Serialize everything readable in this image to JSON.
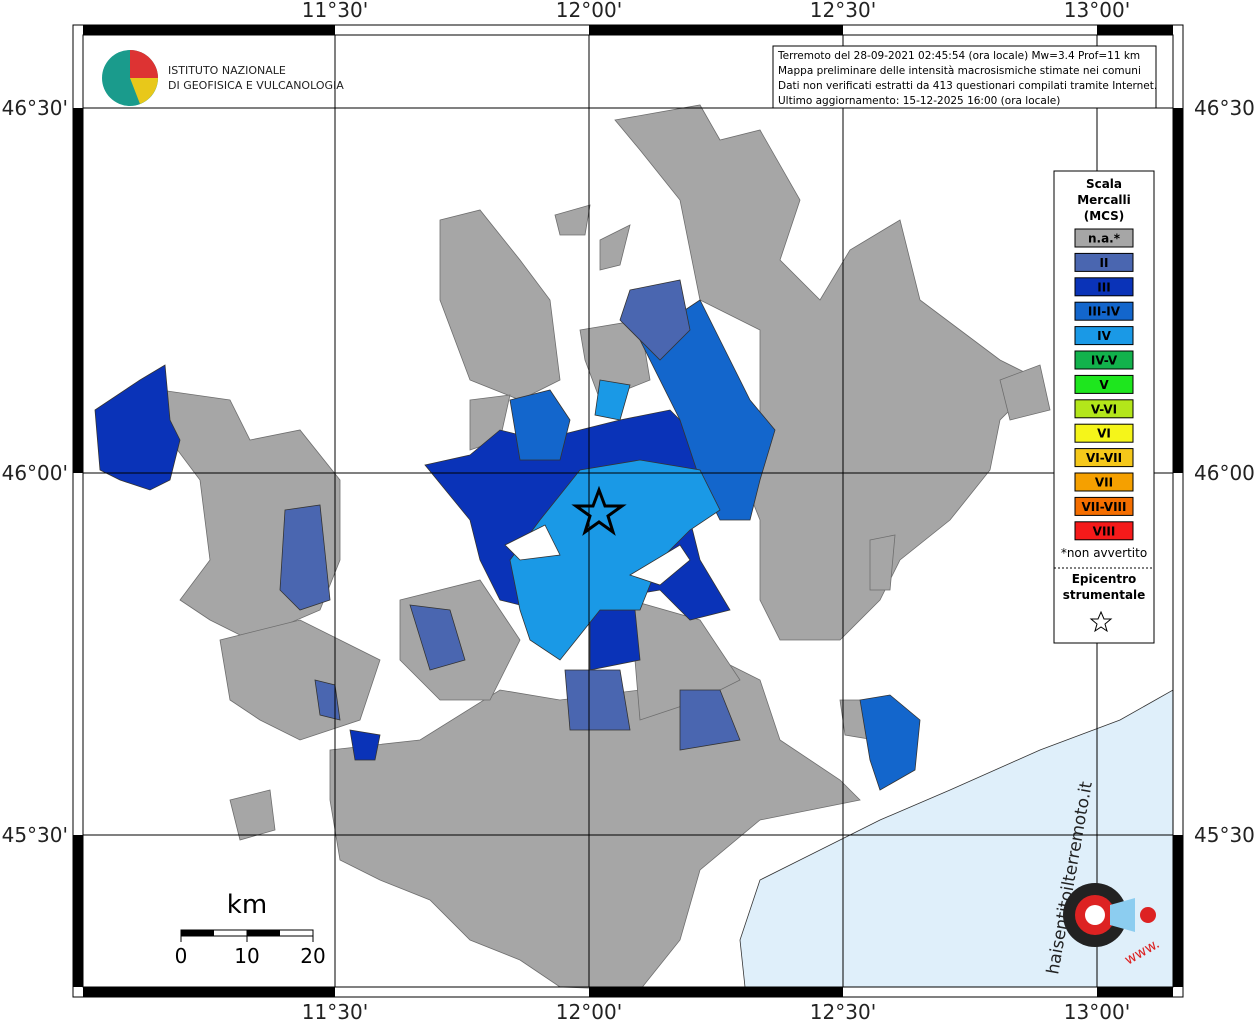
{
  "header": {
    "institute": [
      "ISTITUTO NAZIONALE",
      "DI GEOFISICA E VULCANOLOGIA"
    ]
  },
  "info": [
    "Terremoto del 28-09-2021 02:45:54 (ora locale) Mw=3.4 Prof=11 km",
    "Mappa preliminare delle intensità macrosismiche stimate nei comuni",
    "Dati non verificati estratti da 413 questionari compilati tramite Internet.",
    "Ultimo aggiornamento: 15-12-2025 16:00 (ora locale)"
  ],
  "axes": {
    "longitude": [
      "11°30'",
      "12°00'",
      "12°30'",
      "13°00'"
    ],
    "latitude": [
      "46°30'",
      "46°00'",
      "45°30'"
    ]
  },
  "legend": {
    "title": [
      "Scala",
      "Mercalli",
      "(MCS)"
    ],
    "items": [
      {
        "label": "n.a.*",
        "color": "#a6a6a6"
      },
      {
        "label": "II",
        "color": "#4a66b0"
      },
      {
        "label": "III",
        "color": "#0a33b8"
      },
      {
        "label": "III-IV",
        "color": "#1366cc"
      },
      {
        "label": "IV",
        "color": "#1a99e6"
      },
      {
        "label": "IV-V",
        "color": "#12b24c"
      },
      {
        "label": "V",
        "color": "#1ee61e"
      },
      {
        "label": "V-VI",
        "color": "#b3e61a"
      },
      {
        "label": "VI",
        "color": "#f5f51a"
      },
      {
        "label": "VI-VII",
        "color": "#f5c81a"
      },
      {
        "label": "VII",
        "color": "#f5a000"
      },
      {
        "label": "VII-VIII",
        "color": "#f56e00"
      },
      {
        "label": "VIII",
        "color": "#f51a1a"
      }
    ],
    "note": "*non avvertito",
    "epicenter": [
      "Epicentro",
      "strumentale"
    ]
  },
  "scale_bar": {
    "unit": "km",
    "ticks": [
      0,
      10,
      20
    ]
  },
  "logo": {
    "site": "haisentitoilterremoto.it",
    "www": "www."
  }
}
